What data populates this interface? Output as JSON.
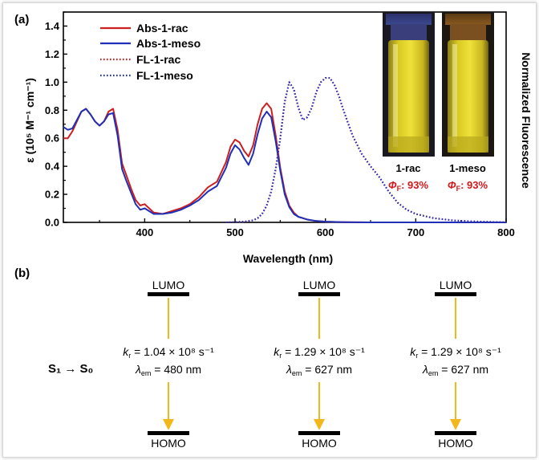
{
  "panel_a_label": "(a)",
  "panel_b_label": "(b)",
  "chart_data": {
    "type": "line",
    "xlabel": "Wavelength (nm)",
    "ylabel_left": "ε (10⁵ M⁻¹ cm⁻¹)",
    "ylabel_right": "Normalized Fluorescence",
    "xlim": [
      310,
      800
    ],
    "ylim": [
      0,
      1.5
    ],
    "xticks": [
      "400",
      "500",
      "600",
      "700",
      "800"
    ],
    "yticks": [
      "0.0",
      "0.2",
      "0.4",
      "0.6",
      "0.8",
      "1.0",
      "1.2",
      "1.4"
    ],
    "legend_position": "top-left",
    "series": [
      {
        "name": "Abs-1-rac",
        "color": "#cc1f1f",
        "style": "solid",
        "x": [
          310,
          315,
          320,
          325,
          330,
          335,
          340,
          345,
          350,
          355,
          360,
          365,
          370,
          375,
          380,
          385,
          390,
          395,
          400,
          405,
          410,
          420,
          430,
          440,
          450,
          460,
          470,
          480,
          490,
          495,
          500,
          505,
          510,
          515,
          520,
          525,
          530,
          535,
          540,
          545,
          550,
          555,
          560,
          565,
          570,
          580,
          590,
          600,
          620,
          650,
          700,
          800
        ],
        "y": [
          0.6,
          0.6,
          0.65,
          0.72,
          0.79,
          0.81,
          0.77,
          0.72,
          0.69,
          0.72,
          0.79,
          0.81,
          0.66,
          0.42,
          0.33,
          0.24,
          0.16,
          0.12,
          0.13,
          0.1,
          0.07,
          0.06,
          0.08,
          0.1,
          0.13,
          0.18,
          0.25,
          0.29,
          0.43,
          0.54,
          0.59,
          0.57,
          0.51,
          0.47,
          0.55,
          0.7,
          0.81,
          0.85,
          0.81,
          0.62,
          0.39,
          0.22,
          0.12,
          0.07,
          0.04,
          0.02,
          0.01,
          0.005,
          0.002,
          0.0,
          0.0,
          0.0
        ]
      },
      {
        "name": "Abs-1-meso",
        "color": "#1f2fb8",
        "style": "solid",
        "x": [
          310,
          315,
          320,
          325,
          330,
          335,
          340,
          345,
          350,
          355,
          360,
          365,
          370,
          375,
          380,
          385,
          390,
          395,
          400,
          405,
          410,
          420,
          430,
          440,
          450,
          460,
          470,
          480,
          490,
          495,
          500,
          505,
          510,
          515,
          520,
          525,
          530,
          535,
          540,
          545,
          550,
          555,
          560,
          565,
          570,
          580,
          590,
          600,
          620,
          650,
          700,
          800
        ],
        "y": [
          0.68,
          0.66,
          0.67,
          0.73,
          0.79,
          0.81,
          0.77,
          0.72,
          0.69,
          0.72,
          0.77,
          0.78,
          0.62,
          0.38,
          0.29,
          0.21,
          0.13,
          0.09,
          0.1,
          0.08,
          0.06,
          0.06,
          0.07,
          0.09,
          0.12,
          0.16,
          0.22,
          0.26,
          0.39,
          0.49,
          0.55,
          0.52,
          0.46,
          0.41,
          0.49,
          0.63,
          0.74,
          0.79,
          0.75,
          0.58,
          0.37,
          0.2,
          0.11,
          0.06,
          0.04,
          0.02,
          0.01,
          0.005,
          0.002,
          0.0,
          0.0,
          0.0
        ]
      },
      {
        "name": "FL-1-rac",
        "color": "#cc1f1f",
        "style": "dotted",
        "x": [
          490,
          500,
          510,
          520,
          525,
          530,
          535,
          540,
          545,
          550,
          555,
          560,
          565,
          570,
          575,
          580,
          585,
          590,
          595,
          600,
          605,
          610,
          615,
          620,
          630,
          640,
          650,
          660,
          670,
          680,
          690,
          700,
          720,
          740,
          760,
          780,
          800
        ],
        "y": [
          0.0,
          0.002,
          0.005,
          0.015,
          0.03,
          0.06,
          0.12,
          0.22,
          0.38,
          0.6,
          0.86,
          1.0,
          0.95,
          0.82,
          0.73,
          0.75,
          0.82,
          0.93,
          1.0,
          1.03,
          1.03,
          0.98,
          0.9,
          0.8,
          0.62,
          0.49,
          0.4,
          0.32,
          0.22,
          0.14,
          0.09,
          0.06,
          0.03,
          0.015,
          0.008,
          0.004,
          0.0
        ]
      },
      {
        "name": "FL-1-meso",
        "color": "#1f2fb8",
        "style": "dotted",
        "x": [
          490,
          500,
          510,
          520,
          525,
          530,
          535,
          540,
          545,
          550,
          555,
          560,
          565,
          570,
          575,
          580,
          585,
          590,
          595,
          600,
          605,
          610,
          615,
          620,
          630,
          640,
          650,
          660,
          670,
          680,
          690,
          700,
          720,
          740,
          760,
          780,
          800
        ],
        "y": [
          0.0,
          0.002,
          0.005,
          0.015,
          0.03,
          0.06,
          0.12,
          0.22,
          0.38,
          0.6,
          0.86,
          1.0,
          0.95,
          0.82,
          0.73,
          0.75,
          0.82,
          0.93,
          1.0,
          1.03,
          1.03,
          0.98,
          0.9,
          0.8,
          0.62,
          0.49,
          0.4,
          0.32,
          0.22,
          0.14,
          0.09,
          0.06,
          0.03,
          0.015,
          0.008,
          0.004,
          0.0
        ]
      }
    ]
  },
  "vials": [
    {
      "name": "1-rac",
      "phi_label": "ΦF: 93%",
      "phi_symbol": "Φ",
      "phi_sub": "F",
      "phi_value": ": 93%"
    },
    {
      "name": "1-meso",
      "phi_label": "ΦF: 93%",
      "phi_symbol": "Φ",
      "phi_sub": "F",
      "phi_value": ": 93%"
    }
  ],
  "panel_b": {
    "transition_label": "S₁ → S₀",
    "lumo_label": "LUMO",
    "homo_label": "HOMO",
    "columns": [
      {
        "kr_value": "= 1.04 × 10⁸ s⁻¹",
        "lambda_value": "= 480 nm"
      },
      {
        "kr_value": "= 1.29 × 10⁸ s⁻¹",
        "lambda_value": "= 627 nm"
      },
      {
        "kr_value": "= 1.29 × 10⁸ s⁻¹",
        "lambda_value": "= 627 nm"
      }
    ],
    "kr_symbol": "k",
    "kr_sub": "r",
    "lambda_symbol": "λ",
    "lambda_sub": "em"
  },
  "colors": {
    "arrow": "#f2b71b",
    "phi": "#d11a1a",
    "vial_fluorescence": "#e2d21e"
  }
}
